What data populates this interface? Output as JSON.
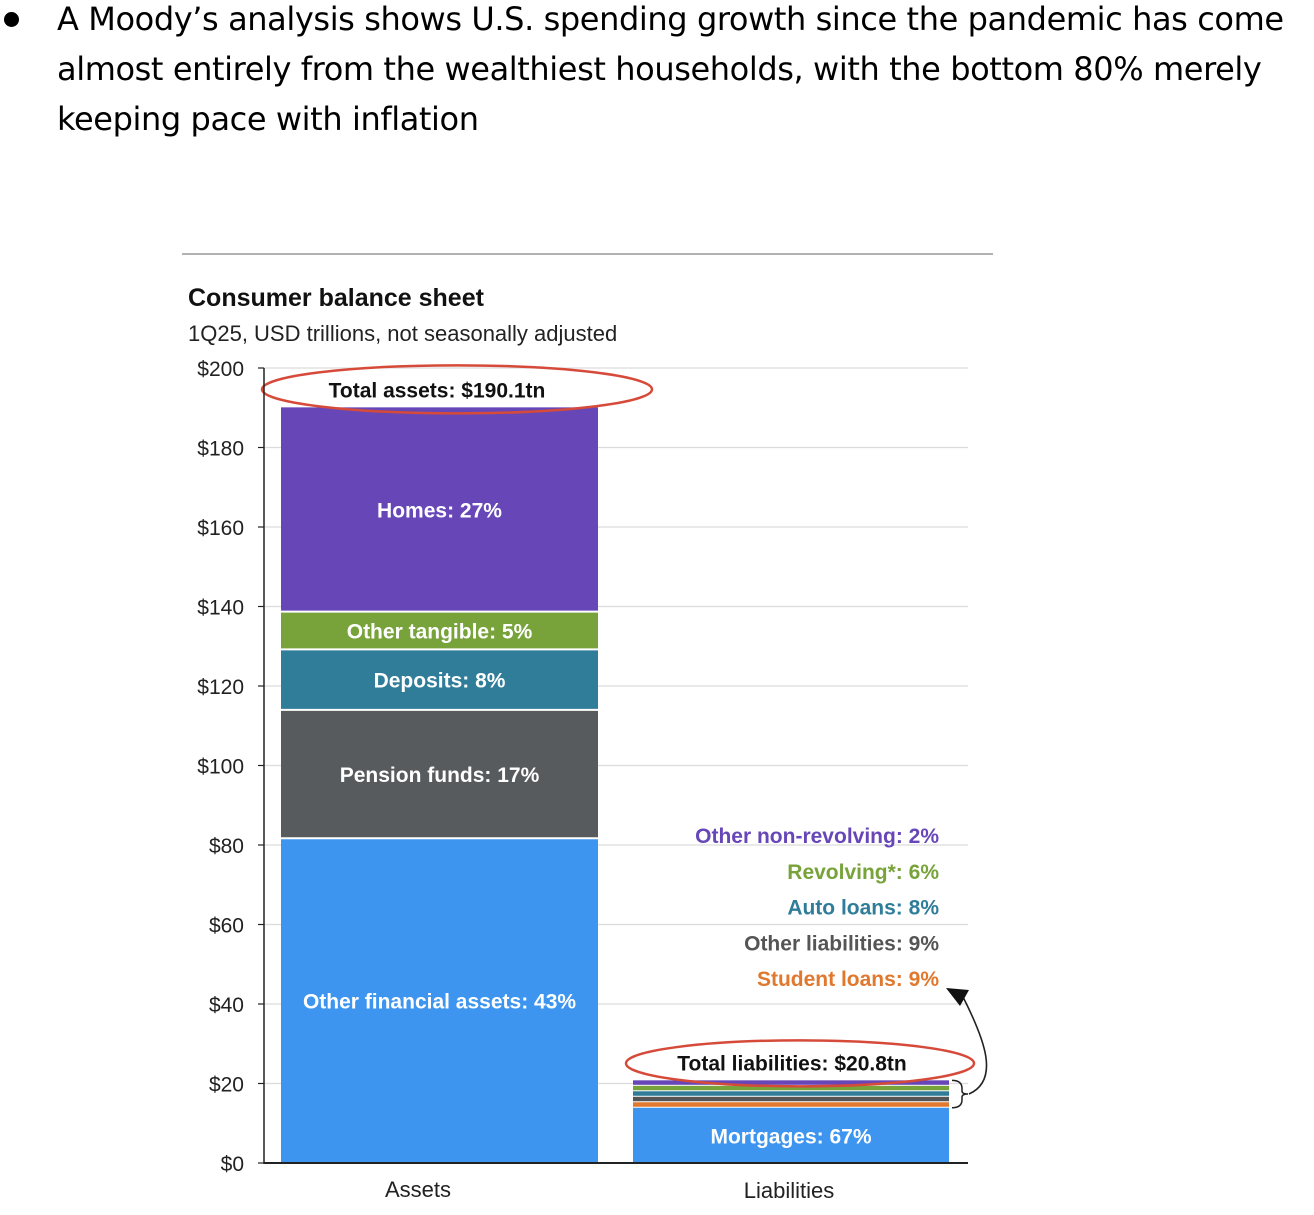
{
  "bullet": {
    "text": "A Moody’s analysis shows U.S. spending growth since the pandemic has come almost entirely from the wealthiest households, with the bottom 80% merely keeping pace with inflation"
  },
  "chart_data": {
    "type": "bar",
    "title": "Consumer balance sheet",
    "subtitle": "1Q25, USD trillions, not seasonally adjusted",
    "categories": [
      "Assets",
      "Liabilities"
    ],
    "ylim": [
      0,
      200
    ],
    "yticks": [
      0,
      20,
      40,
      60,
      80,
      100,
      120,
      140,
      160,
      180,
      200
    ],
    "ytick_labels": [
      "$0",
      "$20",
      "$40",
      "$60",
      "$80",
      "$100",
      "$120",
      "$140",
      "$160",
      "$180",
      "$200"
    ],
    "grid": true,
    "stacked": true,
    "assets": {
      "total_label": "Total assets: $190.1tn",
      "total": 190.1,
      "segments": [
        {
          "label": "Other financial assets: 43%",
          "value": 81.7,
          "color": "#3d95f0"
        },
        {
          "label": "Pension funds: 17%",
          "value": 32.3,
          "color": "#575b5e"
        },
        {
          "label": "Deposits: 8%",
          "value": 15.2,
          "color": "#2f7d99"
        },
        {
          "label": "Other tangible: 5%",
          "value": 9.5,
          "color": "#77a33a"
        },
        {
          "label": "Homes: 27%",
          "value": 51.4,
          "color": "#6747b8"
        }
      ]
    },
    "liabilities": {
      "total_label": "Total liabilities: $20.8tn",
      "total": 20.8,
      "segments": [
        {
          "label": "Mortgages: 67%",
          "value": 13.9,
          "color": "#3d95f0"
        },
        {
          "label": "Student loans: 9%",
          "value": 1.9,
          "color": "#e0782e"
        },
        {
          "label": "Other liabilities: 9%",
          "value": 1.9,
          "color": "#555555"
        },
        {
          "label": "Auto loans: 8%",
          "value": 1.7,
          "color": "#2f7d99"
        },
        {
          "label": "Revolving*: 6%",
          "value": 1.2,
          "color": "#77a33a"
        },
        {
          "label": "Other non-revolving: 2%",
          "value": 0.4,
          "color": "#6747b8"
        }
      ]
    },
    "annotation_color": "#d64a3a"
  }
}
